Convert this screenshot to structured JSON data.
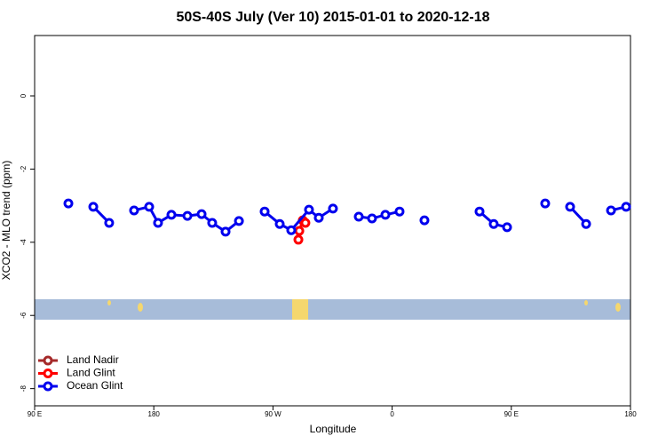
{
  "chart_data": {
    "type": "line",
    "title": "50S-40S July (Ver 10)   2015-01-01 to 2020-12-18",
    "x_label": "Longitude",
    "y_label": "XCO2 - MLO trend (ppm)",
    "xlim": [
      90,
      540
    ],
    "xticks": [
      {
        "value": 90,
        "label": "90 E"
      },
      180,
      {
        "value": 270,
        "label": "90 W"
      },
      {
        "value": 360,
        "label": "0"
      },
      {
        "value": 450,
        "label": "90 E"
      },
      {
        "value": 540,
        "label": "180"
      }
    ],
    "ylim": [
      -8.47,
      1.65
    ],
    "yticks": [
      0,
      -2,
      -4,
      -6,
      -8
    ],
    "legend": "bottom-left",
    "series": [
      {
        "name": "Land Nadir",
        "color": "#a52a2a",
        "x": [],
        "values": []
      },
      {
        "name": "Land Glint",
        "color": "#ff0000",
        "x": [
          289.2,
          289.9,
          292.5,
          294.5
        ],
        "values": [
          -3.93,
          -3.69,
          -3.4,
          -3.47
        ]
      },
      {
        "name": "Ocean Glint",
        "color": "#0000ee",
        "x": [
          115.5,
          null,
          134.3,
          146.3,
          null,
          165.1,
          176.5,
          183.2,
          193.3,
          205.4,
          216.1,
          224.1,
          234.2,
          244.3,
          null,
          263.7,
          275.1,
          283.8,
          297.2,
          304.6,
          315.3,
          null,
          334.8,
          344.8,
          354.9,
          365.6,
          null,
          384.4,
          null,
          426.0,
          436.7,
          446.8,
          null,
          475.6,
          null,
          494.4,
          506.5,
          null,
          525.3,
          536.7
        ],
        "values": [
          -2.94,
          null,
          -3.03,
          -3.47,
          null,
          -3.13,
          -3.03,
          -3.47,
          -3.25,
          -3.28,
          -3.23,
          -3.47,
          -3.71,
          -3.42,
          null,
          -3.16,
          -3.5,
          -3.67,
          -3.11,
          -3.33,
          -3.08,
          null,
          -3.3,
          -3.35,
          -3.25,
          -3.16,
          null,
          -3.4,
          null,
          -3.16,
          -3.5,
          -3.59,
          null,
          -2.94,
          null,
          -3.03,
          -3.5,
          null,
          -3.13,
          -3.03
        ]
      }
    ]
  }
}
